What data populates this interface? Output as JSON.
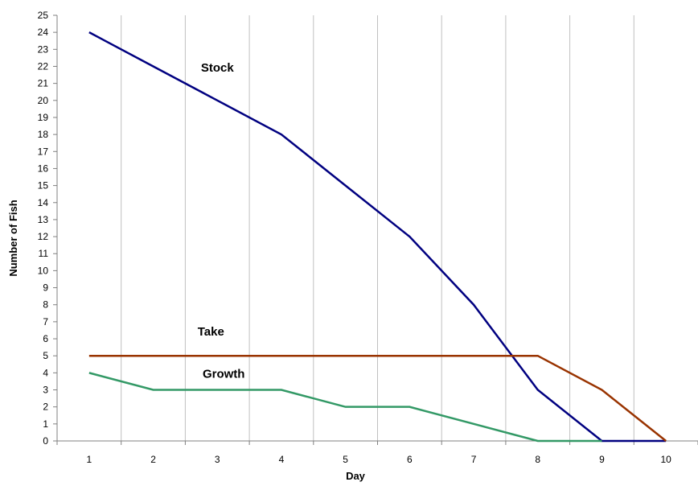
{
  "chart_data": {
    "type": "line",
    "title": "",
    "xlabel": "Day",
    "ylabel": "Number of Fish",
    "x": [
      1,
      2,
      3,
      4,
      5,
      6,
      7,
      8,
      9,
      10
    ],
    "xlim": [
      0.5,
      10.5
    ],
    "ylim": [
      0,
      25
    ],
    "yticks": [
      0,
      1,
      2,
      3,
      4,
      5,
      6,
      7,
      8,
      9,
      10,
      11,
      12,
      13,
      14,
      15,
      16,
      17,
      18,
      19,
      20,
      21,
      22,
      23,
      24,
      25
    ],
    "grid": true,
    "legend": "none",
    "series": [
      {
        "name": "Stock",
        "color": "#000080",
        "values": [
          24,
          22,
          20,
          18,
          15,
          12,
          8,
          3,
          0,
          0
        ]
      },
      {
        "name": "Take",
        "color": "#993300",
        "values": [
          5,
          5,
          5,
          5,
          5,
          5,
          5,
          5,
          3,
          0
        ]
      },
      {
        "name": "Growth",
        "color": "#339966",
        "values": [
          4,
          3,
          3,
          3,
          2,
          2,
          1,
          0,
          0,
          null
        ]
      }
    ],
    "annotations": [
      {
        "text": "Stock",
        "x": 3.0,
        "y": 21.7
      },
      {
        "text": "Take",
        "x": 2.9,
        "y": 6.2
      },
      {
        "text": "Growth",
        "x": 3.1,
        "y": 3.7
      }
    ]
  }
}
